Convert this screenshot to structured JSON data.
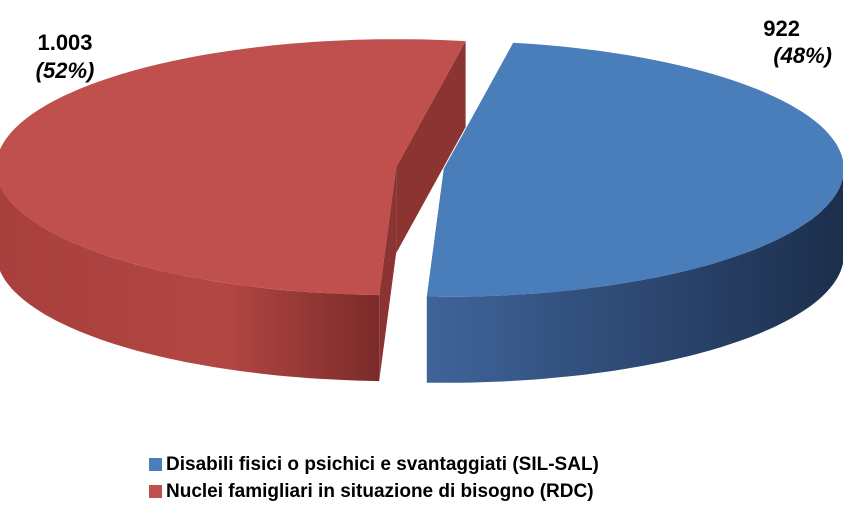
{
  "chart_data": {
    "type": "pie3d",
    "categories": [
      "Disabili fisici o psichici e svantaggiati (SIL-SAL)",
      "Nuclei famigliari in situazione di bisogno (RDC)"
    ],
    "values": [
      922,
      1003
    ],
    "value_labels": [
      "922",
      "1.003"
    ],
    "percents": [
      48,
      52
    ],
    "percent_labels": [
      "(48%)",
      "(52%)"
    ],
    "colors": [
      "#4a7ebb",
      "#c0504d"
    ],
    "legend": "bottom"
  }
}
